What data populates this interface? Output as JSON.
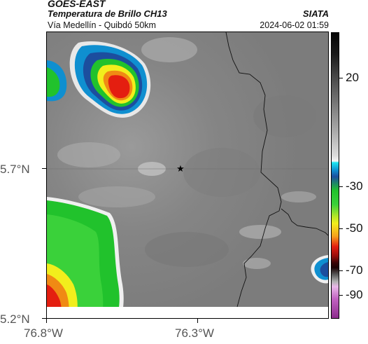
{
  "header": {
    "satellite": "GOES-EAST",
    "product": "Temperatura de Brillo CH13",
    "route": "Vía Medellín - Quibdó 50km",
    "organization": "SIATA",
    "datetime": "2024-06-02 01:59"
  },
  "map": {
    "latitude_labels": [
      "5.7°N",
      "5.2°N"
    ],
    "longitude_labels": [
      "76.8°W",
      "76.3°W"
    ],
    "marker": "star-icon"
  },
  "colorbar": {
    "labels": [
      "20",
      "-30",
      "-50",
      "-70",
      "-90"
    ]
  },
  "colors": {
    "background_gray": "#8c8c8c",
    "cold_cloud_red": "#e41e10",
    "cold_cloud_yellow": "#f2ee1c",
    "cold_cloud_green": "#21c22c",
    "cold_cloud_blue": "#1a64c8"
  }
}
